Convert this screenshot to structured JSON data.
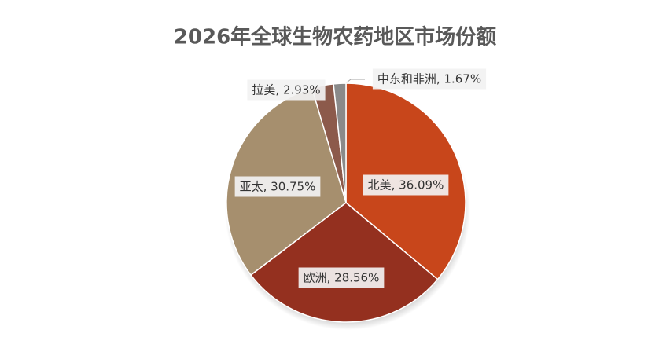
{
  "chart_data": {
    "type": "pie",
    "title": "2026年全球生物农药地区市场份额",
    "values": [
      36.09,
      28.56,
      30.75,
      2.93,
      1.67
    ],
    "value_labels": [
      "北美, 36.09%",
      "欧洲, 28.56%",
      "亚太, 30.75%",
      "拉美, 2.93%",
      "中东和非洲, 1.67%"
    ],
    "colors": [
      "#c8461b",
      "#94301f",
      "#a68f6e",
      "#8c5a4b",
      "#8a8a8a"
    ]
  }
}
